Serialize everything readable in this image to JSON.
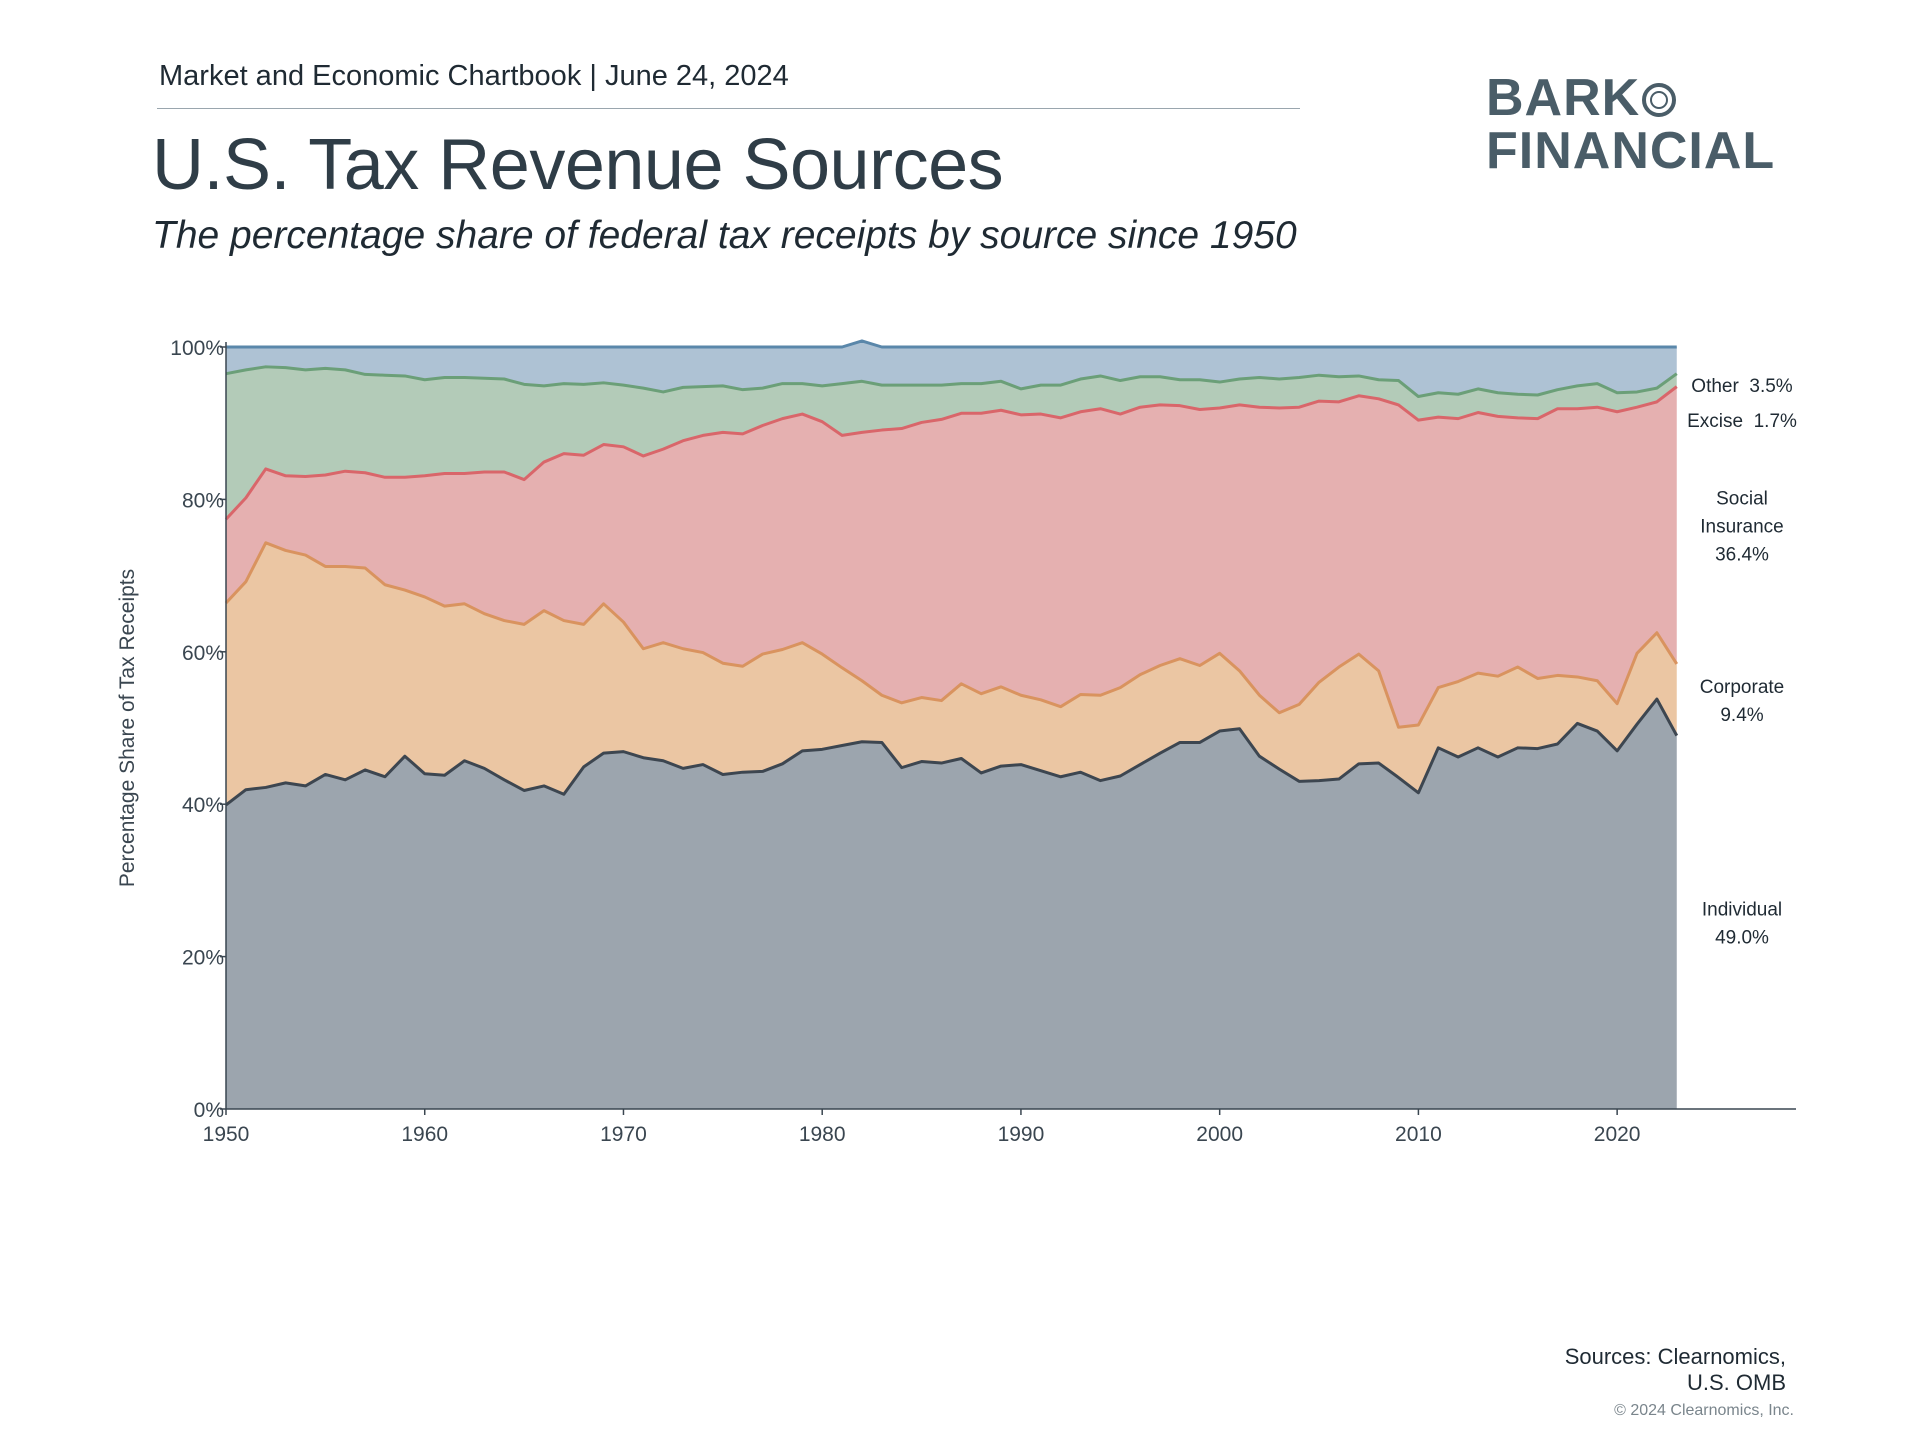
{
  "header": {
    "chartbook": "Market and Economic Chartbook | June 24, 2024",
    "title": "U.S. Tax Revenue Sources",
    "subtitle": "The percentage share of federal tax receipts by source since 1950"
  },
  "logo": {
    "line1": "BARK",
    "line2": "FINANCIAL",
    "color": "#4a5d68"
  },
  "footer": {
    "sources_line1": "Sources: Clearnomics,",
    "sources_line2": "U.S. OMB",
    "copyright": "© 2024 Clearnomics, Inc."
  },
  "chart_data": {
    "type": "area",
    "stacked": true,
    "ylabel": "Percentage Share of Tax Receipts",
    "ylim": [
      0,
      100
    ],
    "xlim": [
      1950,
      2029
    ],
    "yticks": [
      {
        "value": 0,
        "label": "0%"
      },
      {
        "value": 20,
        "label": "20%"
      },
      {
        "value": 40,
        "label": "40%"
      },
      {
        "value": 60,
        "label": "60%"
      },
      {
        "value": 80,
        "label": "80%"
      },
      {
        "value": 100,
        "label": "100%"
      }
    ],
    "xticks": [
      1950,
      1960,
      1970,
      1980,
      1990,
      2000,
      2010,
      2020
    ],
    "x": [
      1950,
      1951,
      1952,
      1953,
      1954,
      1955,
      1956,
      1957,
      1958,
      1959,
      1960,
      1961,
      1962,
      1963,
      1964,
      1965,
      1966,
      1967,
      1968,
      1969,
      1970,
      1971,
      1972,
      1973,
      1974,
      1975,
      1976,
      1977,
      1978,
      1979,
      1980,
      1981,
      1982,
      1983,
      1984,
      1985,
      1986,
      1987,
      1988,
      1989,
      1990,
      1991,
      1992,
      1993,
      1994,
      1995,
      1996,
      1997,
      1998,
      1999,
      2000,
      2001,
      2002,
      2003,
      2004,
      2005,
      2006,
      2007,
      2008,
      2009,
      2010,
      2011,
      2012,
      2013,
      2014,
      2015,
      2016,
      2017,
      2018,
      2019,
      2020,
      2021,
      2022,
      2023
    ],
    "series": [
      {
        "name": "Individual",
        "end_label": [
          "Individual",
          "49.0%"
        ],
        "fill": "#9ca5ae",
        "line": "#3d4650",
        "values": [
          39.9,
          41.9,
          42.2,
          42.8,
          42.4,
          43.9,
          43.2,
          44.5,
          43.6,
          46.3,
          44.0,
          43.8,
          45.7,
          44.7,
          43.2,
          41.8,
          42.4,
          41.3,
          44.9,
          46.7,
          46.9,
          46.1,
          45.7,
          44.7,
          45.2,
          43.9,
          44.2,
          44.3,
          45.3,
          47.0,
          47.2,
          47.7,
          48.2,
          48.1,
          44.8,
          45.6,
          45.4,
          46.0,
          44.1,
          45.0,
          45.2,
          44.4,
          43.6,
          44.2,
          43.1,
          43.7,
          45.2,
          46.7,
          48.1,
          48.1,
          49.6,
          49.9,
          46.3,
          44.6,
          43.0,
          43.1,
          43.3,
          45.3,
          45.4,
          43.5,
          41.5,
          47.4,
          46.2,
          47.4,
          46.2,
          47.4,
          47.3,
          47.9,
          50.6,
          49.6,
          47.0,
          50.5,
          53.8,
          49.0
        ]
      },
      {
        "name": "Corporate",
        "end_label": [
          "Corporate",
          "9.4%"
        ],
        "fill": "#ebc6a3",
        "line": "#d9935f",
        "values": [
          26.5,
          27.3,
          32.1,
          30.5,
          30.3,
          27.3,
          28.0,
          26.5,
          25.2,
          21.8,
          23.2,
          22.2,
          20.6,
          20.3,
          20.9,
          21.8,
          23.0,
          22.8,
          18.7,
          19.6,
          17.0,
          14.3,
          15.5,
          15.7,
          14.7,
          14.6,
          13.9,
          15.4,
          15.0,
          14.2,
          12.5,
          10.2,
          8.0,
          6.2,
          8.5,
          8.4,
          8.2,
          9.8,
          10.4,
          10.4,
          9.1,
          9.3,
          9.2,
          10.2,
          11.2,
          11.6,
          11.8,
          11.5,
          11.0,
          10.1,
          10.2,
          7.6,
          8.0,
          7.4,
          10.1,
          12.9,
          14.7,
          14.4,
          12.1,
          6.6,
          8.9,
          7.9,
          9.9,
          9.8,
          10.6,
          10.6,
          9.2,
          9.0,
          6.1,
          6.6,
          6.2,
          9.3,
          8.7,
          9.4
        ]
      },
      {
        "name": "Social Insurance",
        "end_label": [
          "Social",
          "Insurance",
          "36.4%"
        ],
        "fill": "#e5b0b0",
        "line": "#d9666a",
        "values": [
          11.0,
          11.0,
          9.7,
          9.8,
          10.3,
          12.0,
          12.5,
          12.5,
          14.1,
          14.8,
          15.9,
          17.4,
          17.1,
          18.6,
          19.5,
          19.0,
          19.5,
          21.9,
          22.2,
          20.9,
          23.0,
          25.3,
          25.4,
          27.3,
          28.5,
          30.3,
          30.5,
          30.0,
          30.3,
          30.0,
          30.5,
          30.5,
          32.6,
          34.8,
          36.0,
          36.1,
          36.9,
          35.5,
          36.8,
          36.3,
          36.8,
          37.5,
          37.9,
          37.1,
          37.6,
          35.9,
          35.1,
          34.2,
          33.2,
          33.6,
          32.2,
          34.9,
          37.8,
          40.0,
          39.0,
          36.9,
          34.8,
          33.9,
          35.7,
          42.3,
          40.0,
          35.5,
          34.5,
          34.2,
          34.1,
          32.7,
          34.1,
          35.0,
          35.2,
          35.9,
          38.3,
          32.3,
          30.3,
          36.4
        ]
      },
      {
        "name": "Excise",
        "end_label": [
          "Excise  1.7%"
        ],
        "fill": "#b3cbb8",
        "line": "#6b9f78",
        "values": [
          19.1,
          16.8,
          13.4,
          14.2,
          14.0,
          14.0,
          13.3,
          12.9,
          13.4,
          13.3,
          12.6,
          12.6,
          12.6,
          12.3,
          12.2,
          12.5,
          10.0,
          9.2,
          9.3,
          8.1,
          8.1,
          8.9,
          7.5,
          7.0,
          6.4,
          6.1,
          5.8,
          4.9,
          4.6,
          4.0,
          4.7,
          6.8,
          6.7,
          5.9,
          5.7,
          4.9,
          4.5,
          3.9,
          3.9,
          3.8,
          3.4,
          3.8,
          4.3,
          4.3,
          4.3,
          4.4,
          4.0,
          3.7,
          3.4,
          3.9,
          3.4,
          3.4,
          3.9,
          3.8,
          3.9,
          3.4,
          3.3,
          2.6,
          2.5,
          3.2,
          3.1,
          3.2,
          3.2,
          3.1,
          3.1,
          3.1,
          3.1,
          2.5,
          3.0,
          3.1,
          2.5,
          2.0,
          1.8,
          1.7
        ]
      },
      {
        "name": "Other",
        "end_label": [
          "Other  3.5%"
        ],
        "fill": "#aec2d4",
        "line": "#5a87aa",
        "values": [
          3.5,
          3.0,
          2.6,
          2.7,
          3.0,
          2.8,
          3.0,
          3.6,
          3.7,
          3.8,
          4.3,
          4.0,
          4.0,
          4.1,
          4.2,
          4.9,
          5.1,
          4.8,
          4.9,
          4.7,
          5.0,
          5.4,
          5.9,
          5.3,
          5.2,
          5.1,
          5.6,
          5.4,
          4.8,
          4.8,
          5.1,
          4.8,
          5.3,
          5.0,
          5.0,
          5.0,
          5.0,
          4.8,
          4.8,
          4.5,
          5.5,
          5.0,
          5.0,
          4.2,
          3.8,
          4.4,
          3.9,
          3.9,
          4.3,
          4.3,
          4.6,
          4.2,
          4.0,
          4.2,
          4.0,
          3.7,
          3.9,
          3.8,
          4.3,
          4.4,
          6.5,
          6.0,
          6.2,
          5.5,
          6.0,
          6.2,
          6.3,
          5.6,
          5.1,
          4.8,
          6.0,
          5.9,
          5.4,
          3.5
        ]
      }
    ]
  }
}
